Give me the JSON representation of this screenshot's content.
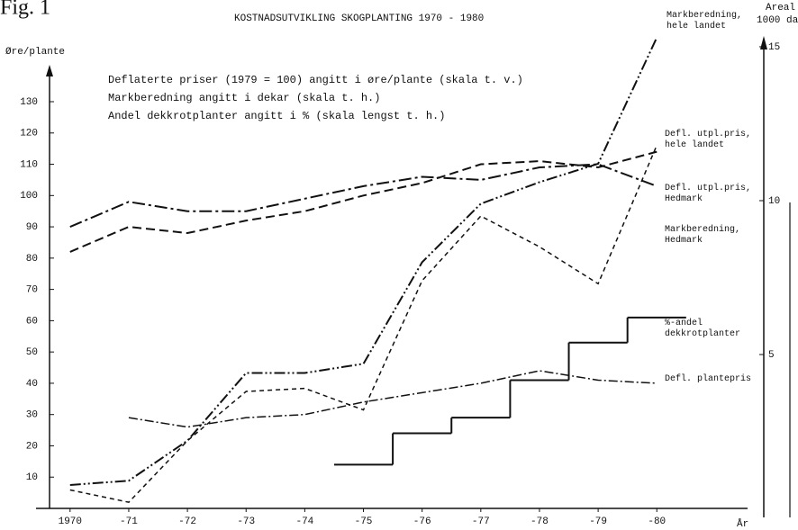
{
  "chart_data": {
    "type": "line",
    "figure_label": "Fig. 1",
    "title": "KOSTNADSUTVIKLING SKOGPLANTING 1970 - 1980",
    "y_label": "Øre/plante",
    "y2_label": [
      "Areal",
      "1000 da"
    ],
    "x_label": "År",
    "notes": [
      "Deflaterte priser (1979 = 100) angitt i øre/plante (skala t. v.)",
      "Markberedning angitt i dekar (skala t. h.)",
      "Andel dekkrotplanter angitt i % (skala lengst t. h.)"
    ],
    "x": [
      1970,
      1971,
      1972,
      1973,
      1974,
      1975,
      1976,
      1977,
      1978,
      1979,
      1980
    ],
    "xlim": [
      1969.65,
      1981.7
    ],
    "xticks": [
      {
        "value": 1970,
        "label": "1970"
      },
      {
        "value": 1971,
        "label": "-71"
      },
      {
        "value": 1972,
        "label": "-72"
      },
      {
        "value": 1973,
        "label": "-73"
      },
      {
        "value": 1974,
        "label": "-74"
      },
      {
        "value": 1975,
        "label": "-75"
      },
      {
        "value": 1976,
        "label": "-76"
      },
      {
        "value": 1977,
        "label": "-77"
      },
      {
        "value": 1978,
        "label": "-78"
      },
      {
        "value": 1979,
        "label": "-79"
      },
      {
        "value": 1980,
        "label": "-80"
      }
    ],
    "ylim": [
      0,
      151
    ],
    "yticks": [
      10,
      20,
      30,
      40,
      50,
      60,
      70,
      80,
      90,
      100,
      110,
      120,
      130
    ],
    "y2lim": [
      0,
      15.35
    ],
    "y2ticks": [
      5,
      10,
      15
    ],
    "series": [
      {
        "name": "Markberedning, hele landet",
        "axis": "y2",
        "color": "#111",
        "values": [
          0.76,
          0.9,
          2.2,
          4.4,
          4.4,
          4.7,
          8.0,
          9.9,
          10.6,
          11.2,
          15.3
        ]
      },
      {
        "name": "Defl. utpl.pris, hele landet",
        "color": "#111",
        "values": [
          82,
          90,
          88,
          92,
          95,
          100,
          104,
          110,
          111,
          109,
          114
        ]
      },
      {
        "name": "Defl. utpl.pris, Hedmark",
        "color": "#111",
        "values": [
          90,
          98,
          95,
          95,
          99,
          103,
          106,
          105,
          109,
          110,
          103
        ]
      },
      {
        "name": "Markberedning, Hedmark",
        "axis": "y2",
        "color": "#111",
        "values": [
          0.6,
          0.2,
          2.2,
          3.8,
          3.9,
          3.2,
          7.4,
          9.5,
          8.5,
          7.3,
          11.8
        ]
      },
      {
        "name": "%-andel dekkrotplanter",
        "color": "#111",
        "x": [
          1974.5,
          1975.5,
          1976.5,
          1977.5,
          1978.5,
          1979.5
        ],
        "values": [
          14,
          24,
          29,
          41,
          53,
          61
        ]
      },
      {
        "name": "Defl. plantepris",
        "color": "#111",
        "values": [
          null,
          29,
          26,
          29,
          30,
          34,
          37,
          40,
          44,
          41,
          40
        ]
      }
    ]
  }
}
